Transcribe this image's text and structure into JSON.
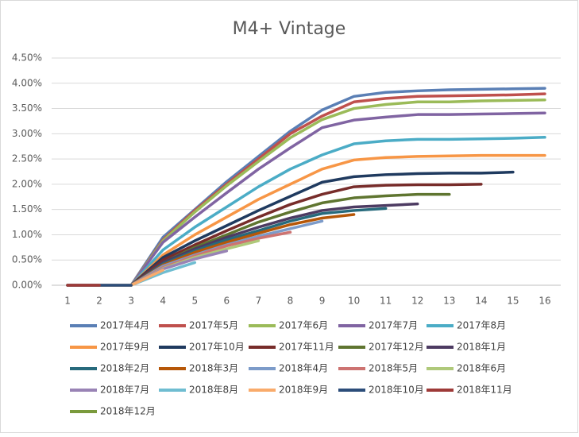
{
  "chart_data": {
    "type": "line",
    "title": "M4+ Vintage",
    "x": [
      1,
      2,
      3,
      4,
      5,
      6,
      7,
      8,
      9,
      10,
      11,
      12,
      13,
      14,
      15,
      16
    ],
    "xlim": [
      0.5,
      16.5
    ],
    "xticks": [
      1,
      2,
      3,
      4,
      5,
      6,
      7,
      8,
      9,
      10,
      11,
      12,
      13,
      14,
      15,
      16
    ],
    "ylim": [
      0,
      4.5
    ],
    "yticks": [
      {
        "value": 0,
        "label": "0.00%"
      },
      {
        "value": 0.5,
        "label": "0.50%"
      },
      {
        "value": 1,
        "label": "1.00%"
      },
      {
        "value": 1.5,
        "label": "1.50%"
      },
      {
        "value": 2,
        "label": "2.00%"
      },
      {
        "value": 2.5,
        "label": "2.50%"
      },
      {
        "value": 3,
        "label": "3.00%"
      },
      {
        "value": 3.5,
        "label": "3.50%"
      },
      {
        "value": 4,
        "label": "4.00%"
      },
      {
        "value": 4.5,
        "label": "4.50%"
      }
    ],
    "grid": true,
    "legend": "bottom",
    "series": [
      {
        "name": "2017年4月",
        "color": "#5a7fb5",
        "values": [
          0,
          0,
          0,
          0.95,
          1.5,
          2.05,
          2.55,
          3.05,
          3.47,
          3.74,
          3.82,
          3.85,
          3.87,
          3.88,
          3.89,
          3.9
        ]
      },
      {
        "name": "2017年5月",
        "color": "#bf504d",
        "values": [
          0,
          0,
          0,
          0.9,
          1.48,
          2.0,
          2.5,
          3.0,
          3.35,
          3.63,
          3.7,
          3.74,
          3.75,
          3.76,
          3.77,
          3.79
        ]
      },
      {
        "name": "2017年6月",
        "color": "#9bbb59",
        "values": [
          0,
          0,
          0,
          0.88,
          1.45,
          1.97,
          2.45,
          2.92,
          3.28,
          3.5,
          3.58,
          3.63,
          3.63,
          3.65,
          3.66,
          3.67
        ]
      },
      {
        "name": "2017年7月",
        "color": "#8064a2",
        "values": [
          0,
          0,
          0,
          0.85,
          1.35,
          1.83,
          2.3,
          2.72,
          3.12,
          3.27,
          3.33,
          3.38,
          3.38,
          3.39,
          3.4,
          3.41
        ]
      },
      {
        "name": "2017年8月",
        "color": "#4bacc6",
        "values": [
          0,
          0,
          0,
          0.7,
          1.15,
          1.55,
          1.95,
          2.3,
          2.58,
          2.8,
          2.86,
          2.89,
          2.89,
          2.9,
          2.91,
          2.93
        ]
      },
      {
        "name": "2017年9月",
        "color": "#f79646",
        "values": [
          0,
          0,
          0,
          0.6,
          1.0,
          1.35,
          1.7,
          2.0,
          2.3,
          2.48,
          2.53,
          2.55,
          2.56,
          2.57,
          2.57,
          2.57
        ]
      },
      {
        "name": "2017年10月",
        "color": "#1f3a5f",
        "values": [
          0,
          0,
          0,
          0.55,
          0.88,
          1.18,
          1.48,
          1.76,
          2.04,
          2.15,
          2.19,
          2.21,
          2.22,
          2.22,
          2.24,
          null
        ]
      },
      {
        "name": "2017年11月",
        "color": "#772c2a",
        "values": [
          0,
          0,
          0,
          0.5,
          0.8,
          1.08,
          1.35,
          1.6,
          1.8,
          1.95,
          1.98,
          1.99,
          1.99,
          2.0,
          null,
          null
        ]
      },
      {
        "name": "2017年12月",
        "color": "#5f7530",
        "values": [
          0,
          0,
          0,
          0.45,
          0.75,
          1.0,
          1.25,
          1.45,
          1.63,
          1.73,
          1.77,
          1.8,
          1.8,
          null,
          null,
          null
        ]
      },
      {
        "name": "2018年1月",
        "color": "#4d3b62",
        "values": [
          0,
          0,
          0,
          0.45,
          0.72,
          0.95,
          1.15,
          1.33,
          1.48,
          1.55,
          1.58,
          1.61,
          null,
          null,
          null,
          null
        ]
      },
      {
        "name": "2018年2月",
        "color": "#276a7c",
        "values": [
          0,
          0,
          0,
          0.42,
          0.68,
          0.9,
          1.08,
          1.27,
          1.42,
          1.48,
          1.52,
          null,
          null,
          null,
          null,
          null
        ]
      },
      {
        "name": "2018年3月",
        "color": "#b65708",
        "values": [
          0,
          0,
          0,
          0.4,
          0.65,
          0.85,
          1.03,
          1.2,
          1.33,
          1.4,
          null,
          null,
          null,
          null,
          null,
          null
        ]
      },
      {
        "name": "2018年4月",
        "color": "#7c9bc9",
        "values": [
          0,
          0,
          0,
          0.38,
          0.6,
          0.8,
          0.97,
          1.12,
          1.27,
          null,
          null,
          null,
          null,
          null,
          null,
          null
        ]
      },
      {
        "name": "2018年5月",
        "color": "#cd7371",
        "values": [
          0,
          0,
          0,
          0.35,
          0.58,
          0.78,
          0.93,
          1.05,
          null,
          null,
          null,
          null,
          null,
          null,
          null,
          null
        ]
      },
      {
        "name": "2018年6月",
        "color": "#afc97a",
        "values": [
          0,
          0,
          0,
          0.33,
          0.55,
          0.72,
          0.88,
          null,
          null,
          null,
          null,
          null,
          null,
          null,
          null,
          null
        ]
      },
      {
        "name": "2018年7月",
        "color": "#9983b5",
        "values": [
          0,
          0,
          0,
          0.32,
          0.52,
          0.68,
          null,
          null,
          null,
          null,
          null,
          null,
          null,
          null,
          null,
          null
        ]
      },
      {
        "name": "2018年8月",
        "color": "#6fbdd1",
        "values": [
          0,
          0,
          0,
          0.25,
          0.45,
          null,
          null,
          null,
          null,
          null,
          null,
          null,
          null,
          null,
          null,
          null
        ]
      },
      {
        "name": "2018年9月",
        "color": "#f9ab6b",
        "values": [
          0,
          0,
          0,
          0.3,
          null,
          null,
          null,
          null,
          null,
          null,
          null,
          null,
          null,
          null,
          null,
          null
        ]
      },
      {
        "name": "2018年10月",
        "color": "#2c4d7a",
        "values": [
          0,
          0,
          0,
          null,
          null,
          null,
          null,
          null,
          null,
          null,
          null,
          null,
          null,
          null,
          null,
          null
        ]
      },
      {
        "name": "2018年11月",
        "color": "#9e3a38",
        "values": [
          0,
          0,
          null,
          null,
          null,
          null,
          null,
          null,
          null,
          null,
          null,
          null,
          null,
          null,
          null,
          null
        ]
      },
      {
        "name": "2018年12月",
        "color": "#7a9a3c",
        "values": [
          0,
          null,
          null,
          null,
          null,
          null,
          null,
          null,
          null,
          null,
          null,
          null,
          null,
          null,
          null,
          null
        ]
      }
    ]
  }
}
